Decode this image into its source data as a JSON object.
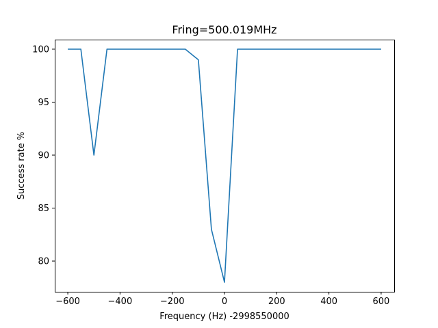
{
  "chart_data": {
    "type": "line",
    "title": "Fring=500.019MHz",
    "xlabel": "Frequency (Hz) -2998550000",
    "ylabel": "Success rate %",
    "xlim": [
      -650,
      650
    ],
    "ylim": [
      77.1,
      100.9
    ],
    "xticks": [
      -600,
      -400,
      -200,
      0,
      200,
      400,
      600
    ],
    "xtick_labels": [
      "−600",
      "−400",
      "−200",
      "0",
      "200",
      "400",
      "600"
    ],
    "yticks": [
      80,
      85,
      90,
      95,
      100
    ],
    "ytick_labels": [
      "80",
      "85",
      "90",
      "95",
      "100"
    ],
    "grid": false,
    "series": [
      {
        "color": "#1f77b4",
        "x": [
          -600,
          -550,
          -500,
          -450,
          -400,
          -350,
          -300,
          -250,
          -200,
          -150,
          -100,
          -50,
          0,
          50,
          100,
          150,
          200,
          250,
          300,
          350,
          400,
          450,
          500,
          550,
          600
        ],
        "y": [
          100,
          100,
          90,
          100,
          100,
          100,
          100,
          100,
          100,
          100,
          99,
          83,
          78,
          100,
          100,
          100,
          100,
          100,
          100,
          100,
          100,
          100,
          100,
          100,
          100
        ]
      }
    ]
  }
}
